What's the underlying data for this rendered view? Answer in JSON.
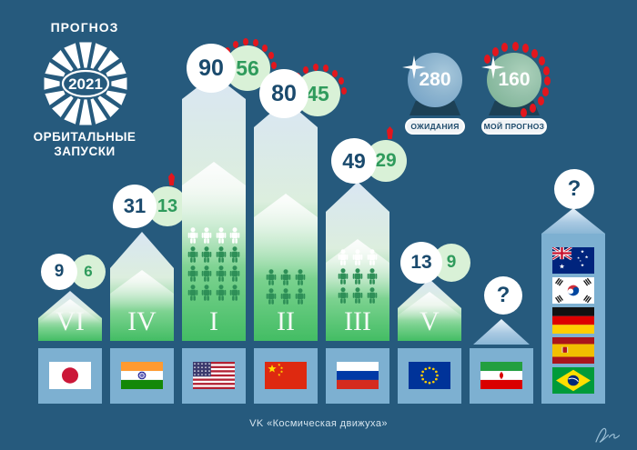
{
  "logo": {
    "title": "ПРОГНОЗ",
    "year": "2021",
    "subtitle_line1": "ОРБИТАЛЬНЫЕ",
    "subtitle_line2": "ЗАПУСКИ"
  },
  "legend": {
    "balls": [
      {
        "value": "280",
        "label": "ОЖИДАНИЯ",
        "type": "expectations",
        "color": "#7ba7c9"
      },
      {
        "value": "160",
        "label": "МОЙ ПРОГНОЗ",
        "type": "my-forecast",
        "color": "#85b79c"
      }
    ]
  },
  "columns": [
    {
      "rank": "VI",
      "flag": "jp",
      "country": "Япония",
      "expected": "9",
      "forecast": "6",
      "marks": "none",
      "people": []
    },
    {
      "rank": "IV",
      "flag": "in",
      "country": "Индия",
      "expected": "31",
      "forecast": "13",
      "marks": "pin",
      "people": []
    },
    {
      "rank": "I",
      "flag": "us",
      "country": "США",
      "expected": "90",
      "forecast": "56",
      "marks": "dots",
      "people": [
        {
          "style": "white",
          "count": 4
        },
        {
          "style": "green",
          "count": 4
        },
        {
          "style": "green",
          "count": 4
        },
        {
          "style": "green",
          "count": 4
        }
      ]
    },
    {
      "rank": "II",
      "flag": "cn",
      "country": "Китай",
      "expected": "80",
      "forecast": "45",
      "marks": "dots",
      "people": [
        {
          "style": "green",
          "count": 3
        },
        {
          "style": "green",
          "count": 3
        }
      ]
    },
    {
      "rank": "III",
      "flag": "ru",
      "country": "Россия",
      "expected": "49",
      "forecast": "29",
      "marks": "pin",
      "people": [
        {
          "style": "white",
          "count": 3
        },
        {
          "style": "green",
          "count": 3
        },
        {
          "style": "green",
          "count": 3
        }
      ]
    },
    {
      "rank": "V",
      "flag": "eu",
      "country": "Европа",
      "expected": "13",
      "forecast": "9",
      "marks": "none",
      "people": []
    },
    {
      "rank": "?",
      "flag": "ir",
      "country": "Иран",
      "expected": "?",
      "forecast": null,
      "marks": "none",
      "people": [],
      "type": "question"
    },
    {
      "rank": "?",
      "flags": [
        "au",
        "kr",
        "de",
        "es",
        "br"
      ],
      "country": "Прочие страны",
      "expected": "?",
      "forecast": null,
      "marks": "none",
      "people": [],
      "type": "question-tall"
    }
  ],
  "caption": "VK «Космическая движуха»",
  "chart_data": {
    "type": "bar",
    "title": "ПРОГНОЗ 2021 — ОРБИТАЛЬНЫЕ ЗАПУСКИ",
    "subtitle": "Ожидания (белые круги) против моего прогноза (зелёные круги) по числу орбитальных запусков",
    "categories": [
      "VI Япония",
      "IV Индия",
      "I США",
      "II Китай",
      "III Россия",
      "V Европа (ЕС)",
      "? Иран",
      "? Прочие (Австралия, Юж. Корея, Германия, Испания, Бразилия)"
    ],
    "series": [
      {
        "name": "ОЖИДАНИЯ",
        "values": [
          9,
          31,
          90,
          80,
          49,
          13,
          null,
          null
        ]
      },
      {
        "name": "МОЙ ПРОГНОЗ",
        "values": [
          6,
          13,
          56,
          45,
          29,
          9,
          null,
          null
        ]
      }
    ],
    "totals": {
      "ОЖИДАНИЯ": 280,
      "МОЙ ПРОГНОЗ": 160
    },
    "crewed_launch_icons": {
      "I США": {
        "white": 4,
        "green": 12
      },
      "II Китай": {
        "white": 0,
        "green": 6
      },
      "III Россия": {
        "white": 3,
        "green": 6
      }
    },
    "legend_position": "top-right",
    "grid": false
  },
  "colors": {
    "background": "#265a7d",
    "column_blue": "#7db0d1",
    "bar_green": "#43bd64",
    "circle_green_bg": "#d9f1d7",
    "number_navy": "#1a4a6d",
    "number_green": "#2f9b5c",
    "red_marks": "#e3161d",
    "ball_blue": "#7ba7c9",
    "ball_green": "#85b79c"
  }
}
